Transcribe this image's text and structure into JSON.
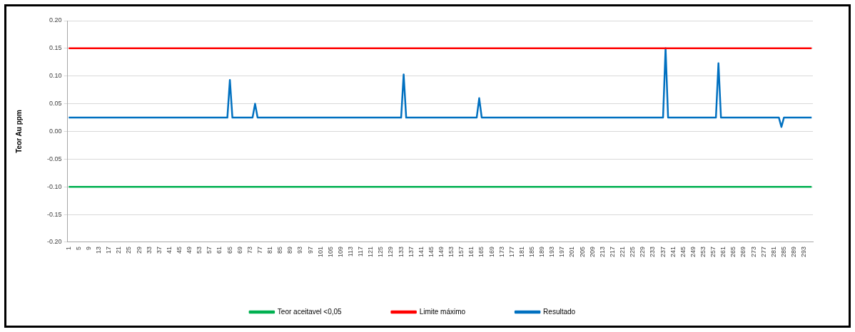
{
  "chart_data": {
    "type": "line",
    "ylabel": "Teor Au ppm",
    "categories": [
      "1",
      null,
      null,
      null,
      "5",
      null,
      null,
      null,
      "9",
      null,
      null,
      null,
      "13",
      null,
      null,
      null,
      "17",
      null,
      null,
      null,
      "21",
      null,
      null,
      null,
      "25",
      null,
      null,
      null,
      "29",
      null,
      null,
      null,
      "33",
      null,
      null,
      null,
      "37",
      null,
      null,
      null,
      "41",
      null,
      null,
      null,
      "45",
      null,
      null,
      null,
      "49",
      null,
      null,
      null,
      "53",
      null,
      null,
      null,
      "57",
      null,
      null,
      null,
      "61",
      null,
      null,
      null,
      "65",
      null,
      null,
      null,
      "69",
      null,
      null,
      null,
      "73",
      null,
      null,
      null,
      "77",
      null,
      null,
      null,
      "81",
      null,
      null,
      null,
      "85",
      null,
      null,
      null,
      "89",
      null,
      null,
      null,
      "93",
      null,
      null,
      null,
      "97",
      null,
      null,
      null,
      "101",
      null,
      null,
      null,
      "105",
      null,
      null,
      null,
      "109",
      null,
      null,
      null,
      "113",
      null,
      null,
      null,
      "117",
      null,
      null,
      null,
      "121",
      null,
      null,
      null,
      "125",
      null,
      null,
      null,
      "129",
      null,
      null,
      null,
      "133",
      null,
      null,
      null,
      "137",
      null,
      null,
      null,
      "141",
      null,
      null,
      null,
      "145",
      null,
      null,
      null,
      "149",
      null,
      null,
      null,
      "153",
      null,
      null,
      null,
      "157",
      null,
      null,
      null,
      "161",
      null,
      null,
      null,
      "165",
      null,
      null,
      null,
      "169",
      null,
      null,
      null,
      "173",
      null,
      null,
      null,
      "177",
      null,
      null,
      null,
      "181",
      null,
      null,
      null,
      "185",
      null,
      null,
      null,
      "189",
      null,
      null,
      null,
      "193",
      null,
      null,
      null,
      "197",
      null,
      null,
      null,
      "201",
      null,
      null,
      null,
      "205",
      null,
      null,
      null,
      "209",
      null,
      null,
      null,
      "213",
      null,
      null,
      null,
      "217",
      null,
      null,
      null,
      "221",
      null,
      null,
      null,
      "225",
      null,
      null,
      null,
      "229",
      null,
      null,
      null,
      "233",
      null,
      null,
      null,
      "237",
      null,
      null,
      null,
      "241",
      null,
      null,
      null,
      "245",
      null,
      null,
      null,
      "249",
      null,
      null,
      null,
      "253",
      null,
      null,
      null,
      "257",
      null,
      null,
      null,
      "261",
      null,
      null,
      null,
      "265",
      null,
      null,
      null,
      "269",
      null,
      null,
      null,
      "273",
      null,
      null,
      null,
      "277",
      null,
      null,
      null,
      "281",
      null,
      null,
      null,
      "285",
      null,
      null,
      null,
      "289",
      null,
      null,
      null,
      "293",
      null,
      null,
      null
    ],
    "series": [
      {
        "name": "Teor aceitavel <0,05",
        "color": "#00b050",
        "values": [
          -0.1,
          -0.1,
          -0.1,
          -0.1,
          -0.1,
          -0.1,
          -0.1,
          -0.1,
          -0.1,
          -0.1,
          -0.1,
          -0.1,
          -0.1,
          -0.1,
          -0.1,
          -0.1,
          -0.1,
          -0.1,
          -0.1,
          -0.1,
          -0.1,
          -0.1,
          -0.1,
          -0.1,
          -0.1,
          -0.1,
          -0.1,
          -0.1,
          -0.1,
          -0.1,
          -0.1,
          -0.1,
          -0.1,
          -0.1,
          -0.1,
          -0.1,
          -0.1,
          -0.1,
          -0.1,
          -0.1,
          -0.1,
          -0.1,
          -0.1,
          -0.1,
          -0.1,
          -0.1,
          -0.1,
          -0.1,
          -0.1,
          -0.1,
          -0.1,
          -0.1,
          -0.1,
          -0.1,
          -0.1,
          -0.1,
          -0.1,
          -0.1,
          -0.1,
          -0.1,
          -0.1,
          -0.1,
          -0.1,
          -0.1,
          -0.1,
          -0.1,
          -0.1,
          -0.1,
          -0.1,
          -0.1,
          -0.1,
          -0.1,
          -0.1,
          -0.1,
          -0.1,
          -0.1,
          -0.1,
          -0.1,
          -0.1,
          -0.1,
          -0.1,
          -0.1,
          -0.1,
          -0.1,
          -0.1,
          -0.1,
          -0.1,
          -0.1,
          -0.1,
          -0.1,
          -0.1,
          -0.1,
          -0.1,
          -0.1,
          -0.1,
          -0.1,
          -0.1,
          -0.1,
          -0.1,
          -0.1,
          -0.1,
          -0.1,
          -0.1,
          -0.1,
          -0.1,
          -0.1,
          -0.1,
          -0.1,
          -0.1,
          -0.1,
          -0.1,
          -0.1,
          -0.1,
          -0.1,
          -0.1,
          -0.1,
          -0.1,
          -0.1,
          -0.1,
          -0.1,
          -0.1,
          -0.1,
          -0.1,
          -0.1,
          -0.1,
          -0.1,
          -0.1,
          -0.1,
          -0.1,
          -0.1,
          -0.1,
          -0.1,
          -0.1,
          -0.1,
          -0.1,
          -0.1,
          -0.1,
          -0.1,
          -0.1,
          -0.1,
          -0.1,
          -0.1,
          -0.1,
          -0.1,
          -0.1,
          -0.1,
          -0.1,
          -0.1,
          -0.1,
          -0.1,
          -0.1,
          -0.1,
          -0.1,
          -0.1,
          -0.1,
          -0.1,
          -0.1,
          -0.1,
          -0.1,
          -0.1,
          -0.1,
          -0.1,
          -0.1,
          -0.1,
          -0.1,
          -0.1,
          -0.1,
          -0.1,
          -0.1,
          -0.1,
          -0.1,
          -0.1,
          -0.1,
          -0.1,
          -0.1,
          -0.1,
          -0.1,
          -0.1,
          -0.1,
          -0.1,
          -0.1,
          -0.1,
          -0.1,
          -0.1,
          -0.1,
          -0.1,
          -0.1,
          -0.1,
          -0.1,
          -0.1,
          -0.1,
          -0.1,
          -0.1,
          -0.1,
          -0.1,
          -0.1,
          -0.1,
          -0.1,
          -0.1,
          -0.1,
          -0.1,
          -0.1,
          -0.1,
          -0.1,
          -0.1,
          -0.1,
          -0.1,
          -0.1,
          -0.1,
          -0.1,
          -0.1,
          -0.1,
          -0.1,
          -0.1,
          -0.1,
          -0.1,
          -0.1,
          -0.1,
          -0.1,
          -0.1,
          -0.1,
          -0.1,
          -0.1,
          -0.1,
          -0.1,
          -0.1,
          -0.1,
          -0.1,
          -0.1,
          -0.1,
          -0.1,
          -0.1,
          -0.1,
          -0.1,
          -0.1,
          -0.1,
          -0.1,
          -0.1,
          -0.1,
          -0.1,
          -0.1,
          -0.1,
          -0.1,
          -0.1,
          -0.1,
          -0.1,
          -0.1,
          -0.1,
          -0.1,
          -0.1,
          -0.1,
          -0.1,
          -0.1,
          -0.1,
          -0.1,
          -0.1,
          -0.1,
          -0.1,
          -0.1,
          -0.1,
          -0.1,
          -0.1,
          -0.1,
          -0.1,
          -0.1,
          -0.1,
          -0.1,
          -0.1,
          -0.1,
          -0.1,
          -0.1,
          -0.1,
          -0.1,
          -0.1,
          -0.1,
          -0.1,
          -0.1,
          -0.1,
          -0.1,
          -0.1,
          -0.1,
          -0.1,
          -0.1,
          -0.1,
          -0.1,
          -0.1,
          -0.1,
          -0.1,
          -0.1,
          -0.1,
          -0.1,
          -0.1,
          -0.1,
          -0.1,
          -0.1,
          -0.1
        ]
      },
      {
        "name": "Limite máximo",
        "color": "#ff0000",
        "values": [
          0.15,
          0.15,
          0.15,
          0.15,
          0.15,
          0.15,
          0.15,
          0.15,
          0.15,
          0.15,
          0.15,
          0.15,
          0.15,
          0.15,
          0.15,
          0.15,
          0.15,
          0.15,
          0.15,
          0.15,
          0.15,
          0.15,
          0.15,
          0.15,
          0.15,
          0.15,
          0.15,
          0.15,
          0.15,
          0.15,
          0.15,
          0.15,
          0.15,
          0.15,
          0.15,
          0.15,
          0.15,
          0.15,
          0.15,
          0.15,
          0.15,
          0.15,
          0.15,
          0.15,
          0.15,
          0.15,
          0.15,
          0.15,
          0.15,
          0.15,
          0.15,
          0.15,
          0.15,
          0.15,
          0.15,
          0.15,
          0.15,
          0.15,
          0.15,
          0.15,
          0.15,
          0.15,
          0.15,
          0.15,
          0.15,
          0.15,
          0.15,
          0.15,
          0.15,
          0.15,
          0.15,
          0.15,
          0.15,
          0.15,
          0.15,
          0.15,
          0.15,
          0.15,
          0.15,
          0.15,
          0.15,
          0.15,
          0.15,
          0.15,
          0.15,
          0.15,
          0.15,
          0.15,
          0.15,
          0.15,
          0.15,
          0.15,
          0.15,
          0.15,
          0.15,
          0.15,
          0.15,
          0.15,
          0.15,
          0.15,
          0.15,
          0.15,
          0.15,
          0.15,
          0.15,
          0.15,
          0.15,
          0.15,
          0.15,
          0.15,
          0.15,
          0.15,
          0.15,
          0.15,
          0.15,
          0.15,
          0.15,
          0.15,
          0.15,
          0.15,
          0.15,
          0.15,
          0.15,
          0.15,
          0.15,
          0.15,
          0.15,
          0.15,
          0.15,
          0.15,
          0.15,
          0.15,
          0.15,
          0.15,
          0.15,
          0.15,
          0.15,
          0.15,
          0.15,
          0.15,
          0.15,
          0.15,
          0.15,
          0.15,
          0.15,
          0.15,
          0.15,
          0.15,
          0.15,
          0.15,
          0.15,
          0.15,
          0.15,
          0.15,
          0.15,
          0.15,
          0.15,
          0.15,
          0.15,
          0.15,
          0.15,
          0.15,
          0.15,
          0.15,
          0.15,
          0.15,
          0.15,
          0.15,
          0.15,
          0.15,
          0.15,
          0.15,
          0.15,
          0.15,
          0.15,
          0.15,
          0.15,
          0.15,
          0.15,
          0.15,
          0.15,
          0.15,
          0.15,
          0.15,
          0.15,
          0.15,
          0.15,
          0.15,
          0.15,
          0.15,
          0.15,
          0.15,
          0.15,
          0.15,
          0.15,
          0.15,
          0.15,
          0.15,
          0.15,
          0.15,
          0.15,
          0.15,
          0.15,
          0.15,
          0.15,
          0.15,
          0.15,
          0.15,
          0.15,
          0.15,
          0.15,
          0.15,
          0.15,
          0.15,
          0.15,
          0.15,
          0.15,
          0.15,
          0.15,
          0.15,
          0.15,
          0.15,
          0.15,
          0.15,
          0.15,
          0.15,
          0.15,
          0.15,
          0.15,
          0.15,
          0.15,
          0.15,
          0.15,
          0.15,
          0.15,
          0.15,
          0.15,
          0.15,
          0.15,
          0.15,
          0.15,
          0.15,
          0.15,
          0.15,
          0.15,
          0.15,
          0.15,
          0.15,
          0.15,
          0.15,
          0.15,
          0.15,
          0.15,
          0.15,
          0.15,
          0.15,
          0.15,
          0.15,
          0.15,
          0.15,
          0.15,
          0.15,
          0.15,
          0.15,
          0.15,
          0.15,
          0.15,
          0.15,
          0.15,
          0.15,
          0.15,
          0.15,
          0.15,
          0.15,
          0.15,
          0.15,
          0.15,
          0.15,
          0.15,
          0.15,
          0.15,
          0.15,
          0.15,
          0.15,
          0.15,
          0.15,
          0.15,
          0.15,
          0.15,
          0.15,
          0.15,
          0.15,
          0.15,
          0.15,
          0.15,
          0.15
        ]
      },
      {
        "name": "Resultado",
        "color": "#0070c0",
        "values": [
          0.025,
          0.025,
          0.025,
          0.025,
          0.025,
          0.025,
          0.025,
          0.025,
          0.025,
          0.025,
          0.025,
          0.025,
          0.025,
          0.025,
          0.025,
          0.025,
          0.025,
          0.025,
          0.025,
          0.025,
          0.025,
          0.025,
          0.025,
          0.025,
          0.025,
          0.025,
          0.025,
          0.025,
          0.025,
          0.025,
          0.025,
          0.025,
          0.025,
          0.025,
          0.025,
          0.025,
          0.025,
          0.025,
          0.025,
          0.025,
          0.025,
          0.025,
          0.025,
          0.025,
          0.025,
          0.025,
          0.025,
          0.025,
          0.025,
          0.025,
          0.025,
          0.025,
          0.025,
          0.025,
          0.025,
          0.025,
          0.025,
          0.025,
          0.025,
          0.025,
          0.025,
          0.025,
          0.025,
          0.025,
          0.093,
          0.025,
          0.025,
          0.025,
          0.025,
          0.025,
          0.025,
          0.025,
          0.025,
          0.025,
          0.05,
          0.025,
          0.025,
          0.025,
          0.025,
          0.025,
          0.025,
          0.025,
          0.025,
          0.025,
          0.025,
          0.025,
          0.025,
          0.025,
          0.025,
          0.025,
          0.025,
          0.025,
          0.025,
          0.025,
          0.025,
          0.025,
          0.025,
          0.025,
          0.025,
          0.025,
          0.025,
          0.025,
          0.025,
          0.025,
          0.025,
          0.025,
          0.025,
          0.025,
          0.025,
          0.025,
          0.025,
          0.025,
          0.025,
          0.025,
          0.025,
          0.025,
          0.025,
          0.025,
          0.025,
          0.025,
          0.025,
          0.025,
          0.025,
          0.025,
          0.025,
          0.025,
          0.025,
          0.025,
          0.025,
          0.025,
          0.025,
          0.025,
          0.025,
          0.103,
          0.025,
          0.025,
          0.025,
          0.025,
          0.025,
          0.025,
          0.025,
          0.025,
          0.025,
          0.025,
          0.025,
          0.025,
          0.025,
          0.025,
          0.025,
          0.025,
          0.025,
          0.025,
          0.025,
          0.025,
          0.025,
          0.025,
          0.025,
          0.025,
          0.025,
          0.025,
          0.025,
          0.025,
          0.025,
          0.06,
          0.025,
          0.025,
          0.025,
          0.025,
          0.025,
          0.025,
          0.025,
          0.025,
          0.025,
          0.025,
          0.025,
          0.025,
          0.025,
          0.025,
          0.025,
          0.025,
          0.025,
          0.025,
          0.025,
          0.025,
          0.025,
          0.025,
          0.025,
          0.025,
          0.025,
          0.025,
          0.025,
          0.025,
          0.025,
          0.025,
          0.025,
          0.025,
          0.025,
          0.025,
          0.025,
          0.025,
          0.025,
          0.025,
          0.025,
          0.025,
          0.025,
          0.025,
          0.025,
          0.025,
          0.025,
          0.025,
          0.025,
          0.025,
          0.025,
          0.025,
          0.025,
          0.025,
          0.025,
          0.025,
          0.025,
          0.025,
          0.025,
          0.025,
          0.025,
          0.025,
          0.025,
          0.025,
          0.025,
          0.025,
          0.025,
          0.025,
          0.025,
          0.025,
          0.025,
          0.025,
          0.025,
          0.025,
          0.025,
          0.15,
          0.025,
          0.025,
          0.025,
          0.025,
          0.025,
          0.025,
          0.025,
          0.025,
          0.025,
          0.025,
          0.025,
          0.025,
          0.025,
          0.025,
          0.025,
          0.025,
          0.025,
          0.025,
          0.025,
          0.025,
          0.123,
          0.025,
          0.025,
          0.025,
          0.025,
          0.025,
          0.025,
          0.025,
          0.025,
          0.025,
          0.025,
          0.025,
          0.025,
          0.025,
          0.025,
          0.025,
          0.025,
          0.025,
          0.025,
          0.025,
          0.025,
          0.025,
          0.025,
          0.025,
          0.025,
          0.008,
          0.025,
          0.025,
          0.025,
          0.025,
          0.025,
          0.025,
          0.025,
          0.025,
          0.025,
          0.025,
          0.025,
          0.025
        ]
      }
    ],
    "ylim": [
      -0.2,
      0.2
    ],
    "yticks": [
      {
        "value": -0.2,
        "label": "-0.20"
      },
      {
        "value": -0.15,
        "label": "-0.15"
      },
      {
        "value": -0.1,
        "label": "-0.10"
      },
      {
        "value": -0.05,
        "label": "-0.05"
      },
      {
        "value": 0,
        "label": "0.00"
      },
      {
        "value": 0.05,
        "label": "0.05"
      },
      {
        "value": 0.1,
        "label": "0.10"
      },
      {
        "value": 0.15,
        "label": "0.15"
      },
      {
        "value": 0.2,
        "label": "0.20"
      }
    ],
    "grid": "y",
    "legend": "bottom",
    "marker": "none",
    "line_style": "solid"
  }
}
